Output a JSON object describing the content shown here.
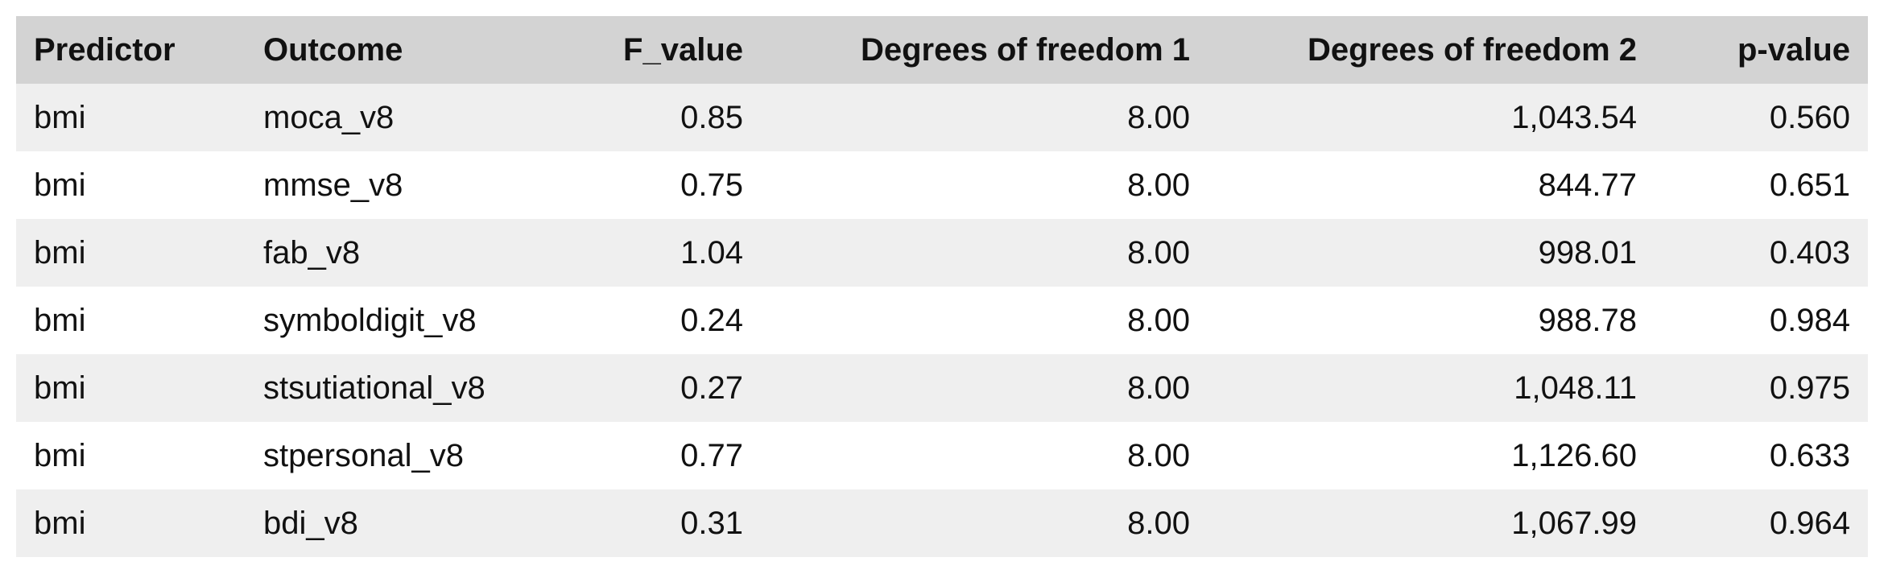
{
  "chart_data": {
    "type": "table",
    "columns": [
      "Predictor",
      "Outcome",
      "F_value",
      "Degrees of freedom 1",
      "Degrees of freedom 2",
      "p-value"
    ],
    "rows": [
      [
        "bmi",
        "moca_v8",
        "0.85",
        "8.00",
        "1,043.54",
        "0.560"
      ],
      [
        "bmi",
        "mmse_v8",
        "0.75",
        "8.00",
        "844.77",
        "0.651"
      ],
      [
        "bmi",
        "fab_v8",
        "1.04",
        "8.00",
        "998.01",
        "0.403"
      ],
      [
        "bmi",
        "symboldigit_v8",
        "0.24",
        "8.00",
        "988.78",
        "0.984"
      ],
      [
        "bmi",
        "stsutiational_v8",
        "0.27",
        "8.00",
        "1,048.11",
        "0.975"
      ],
      [
        "bmi",
        "stpersonal_v8",
        "0.77",
        "8.00",
        "1,126.60",
        "0.633"
      ],
      [
        "bmi",
        "bdi_v8",
        "0.31",
        "8.00",
        "1,067.99",
        "0.964"
      ]
    ]
  },
  "colors": {
    "header_bg": "#d3d3d3",
    "row_odd_bg": "#efefef",
    "row_even_bg": "#ffffff",
    "text": "#111111"
  }
}
